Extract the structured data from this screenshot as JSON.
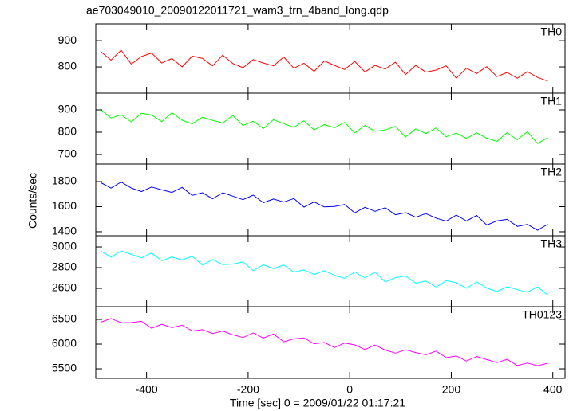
{
  "chart_data": [
    {
      "type": "line",
      "title": "ae703049010_20090122011721_wam3_trn_4band_long.qdp",
      "x": [
        -490,
        -470,
        -450,
        -430,
        -410,
        -390,
        -370,
        -350,
        -330,
        -310,
        -290,
        -270,
        -250,
        -230,
        -210,
        -190,
        -170,
        -150,
        -130,
        -110,
        -90,
        -70,
        -50,
        -30,
        -10,
        10,
        30,
        50,
        70,
        90,
        110,
        130,
        150,
        170,
        190,
        210,
        230,
        250,
        270,
        290,
        310,
        330,
        350,
        370,
        390
      ],
      "series": [
        {
          "name": "TH0",
          "color": "#ff0000",
          "values": [
            858,
            826,
            864,
            811,
            840,
            853,
            815,
            832,
            800,
            841,
            833,
            804,
            845,
            813,
            797,
            828,
            815,
            804,
            838,
            795,
            814,
            783,
            823,
            806,
            790,
            821,
            781,
            806,
            792,
            818,
            771,
            806,
            780,
            788,
            804,
            757,
            795,
            775,
            801,
            763,
            779,
            757,
            782,
            760,
            746
          ]
        }
      ],
      "xlim": [
        -500,
        424
      ],
      "ylim": [
        700,
        964
      ],
      "yticks": [
        800,
        900
      ]
    },
    {
      "type": "line",
      "x": [
        -490,
        -470,
        -450,
        -430,
        -410,
        -390,
        -370,
        -350,
        -330,
        -310,
        -290,
        -270,
        -250,
        -230,
        -210,
        -190,
        -170,
        -150,
        -130,
        -110,
        -90,
        -70,
        -50,
        -30,
        -10,
        10,
        30,
        50,
        70,
        90,
        110,
        130,
        150,
        170,
        190,
        210,
        230,
        250,
        270,
        290,
        310,
        330,
        350,
        370,
        390
      ],
      "series": [
        {
          "name": "TH1",
          "color": "#00ff00",
          "values": [
            901,
            863,
            878,
            846,
            885,
            877,
            847,
            887,
            854,
            837,
            867,
            853,
            841,
            875,
            830,
            849,
            816,
            856,
            838,
            821,
            851,
            810,
            834,
            820,
            844,
            797,
            830,
            804,
            810,
            826,
            778,
            815,
            794,
            819,
            780,
            796,
            772,
            797,
            773,
            759,
            798,
            766,
            802,
            749,
            776
          ]
        }
      ],
      "xlim": [
        -500,
        424
      ],
      "ylim": [
        657,
        975
      ],
      "yticks": [
        700,
        800,
        900
      ]
    },
    {
      "type": "line",
      "ylabel": "Counts/sec",
      "x": [
        -490,
        -470,
        -450,
        -430,
        -410,
        -390,
        -370,
        -350,
        -330,
        -310,
        -290,
        -270,
        -250,
        -230,
        -210,
        -190,
        -170,
        -150,
        -130,
        -110,
        -90,
        -70,
        -50,
        -30,
        -10,
        10,
        30,
        50,
        70,
        90,
        110,
        130,
        150,
        170,
        190,
        210,
        230,
        250,
        270,
        290,
        310,
        330,
        350,
        370,
        390
      ],
      "series": [
        {
          "name": "TH2",
          "color": "#0000ff",
          "values": [
            1792,
            1748,
            1797,
            1749,
            1721,
            1757,
            1734,
            1714,
            1754,
            1690,
            1711,
            1663,
            1711,
            1684,
            1656,
            1692,
            1632,
            1661,
            1637,
            1665,
            1597,
            1638,
            1598,
            1602,
            1618,
            1551,
            1595,
            1563,
            1592,
            1536,
            1552,
            1516,
            1545,
            1509,
            1485,
            1533,
            1486,
            1530,
            1454,
            1487,
            1499,
            1443,
            1459,
            1412,
            1460
          ]
        }
      ],
      "xlim": [
        -500,
        424
      ],
      "ylim": [
        1368,
        1940
      ],
      "yticks": [
        1400,
        1600,
        1800
      ]
    },
    {
      "type": "line",
      "x": [
        -490,
        -470,
        -450,
        -430,
        -410,
        -390,
        -370,
        -350,
        -330,
        -310,
        -290,
        -270,
        -250,
        -230,
        -210,
        -190,
        -170,
        -150,
        -130,
        -110,
        -90,
        -70,
        -50,
        -30,
        -10,
        10,
        30,
        50,
        70,
        90,
        110,
        130,
        150,
        170,
        190,
        210,
        230,
        250,
        270,
        290,
        310,
        330,
        350,
        370,
        390
      ],
      "series": [
        {
          "name": "TH3",
          "color": "#00ffff",
          "values": [
            2960,
            2901,
            2962,
            2928,
            2895,
            2941,
            2867,
            2903,
            2874,
            2910,
            2826,
            2878,
            2829,
            2835,
            2856,
            2772,
            2828,
            2789,
            2826,
            2757,
            2778,
            2734,
            2770,
            2726,
            2697,
            2758,
            2700,
            2756,
            2662,
            2703,
            2719,
            2650,
            2671,
            2613,
            2674,
            2655,
            2601,
            2662,
            2603,
            2569,
            2616,
            2587,
            2563,
            2614,
            2535
          ]
        }
      ],
      "xlim": [
        -500,
        424
      ],
      "ylim": [
        2423,
        3108
      ],
      "yticks": [
        2600,
        2800,
        3000
      ]
    },
    {
      "type": "line",
      "xlabel": "Time [sec] 0 = 2009/01/22 01:17:21",
      "x": [
        -490,
        -470,
        -450,
        -430,
        -410,
        -390,
        -370,
        -350,
        -330,
        -310,
        -290,
        -270,
        -250,
        -230,
        -210,
        -190,
        -170,
        -150,
        -130,
        -110,
        -90,
        -70,
        -50,
        -30,
        -10,
        10,
        30,
        50,
        70,
        90,
        110,
        130,
        150,
        170,
        190,
        210,
        230,
        250,
        270,
        290,
        310,
        330,
        350,
        370,
        390
      ],
      "series": [
        {
          "name": "TH0123",
          "color": "#ff00ff",
          "values": [
            6444,
            6518,
            6433,
            6435,
            6462,
            6320,
            6402,
            6333,
            6383,
            6266,
            6292,
            6214,
            6265,
            6187,
            6134,
            6224,
            6122,
            6205,
            6047,
            6106,
            6124,
            6006,
            6033,
            5931,
            6022,
            5984,
            5890,
            5981,
            5879,
            5818,
            5884,
            5830,
            5785,
            5859,
            5726,
            5760,
            5658,
            5749,
            5687,
            5626,
            5692,
            5566,
            5617,
            5563,
            5614
          ]
        }
      ],
      "xlim": [
        -500,
        424
      ],
      "ylim": [
        5307,
        6758
      ],
      "yticks": [
        5500,
        6000,
        6500
      ],
      "xticks": [
        -400,
        -200,
        0,
        200,
        400
      ]
    }
  ]
}
